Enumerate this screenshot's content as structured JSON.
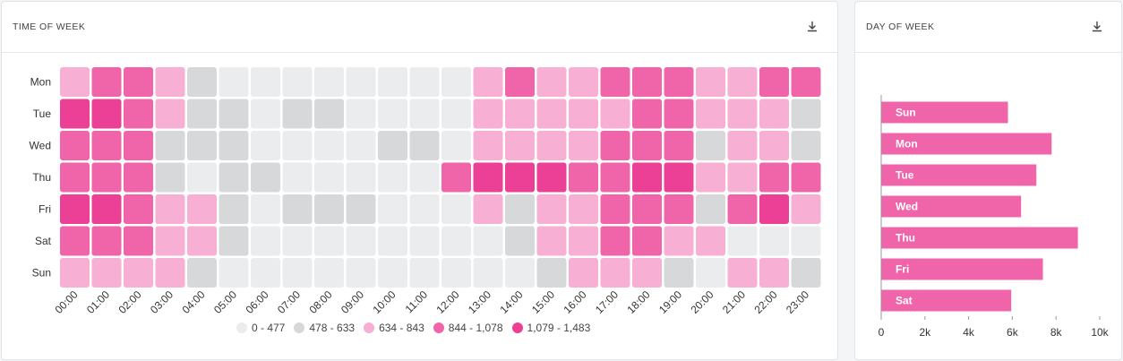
{
  "panels": {
    "time_of_week": {
      "title": "TIME OF WEEK",
      "download_icon": "download-icon"
    },
    "day_of_week": {
      "title": "DAY OF WEEK",
      "download_icon": "download-icon"
    }
  },
  "colors": {
    "bin0": "#ebeced",
    "bin1": "#d7d8d9",
    "bin2": "#f7afd3",
    "bin3": "#f064aa",
    "bin4": "#ec3f96",
    "bar": "#f064aa",
    "axis": "#999999",
    "text": "#333333"
  },
  "legend": [
    {
      "label": "0 - 477",
      "bin": 0
    },
    {
      "label": "478 - 633",
      "bin": 1
    },
    {
      "label": "634 - 843",
      "bin": 2
    },
    {
      "label": "844 - 1,078",
      "bin": 3
    },
    {
      "label": "1,079 - 1,483",
      "bin": 4
    }
  ],
  "chart_data": [
    {
      "type": "heatmap",
      "title": "TIME OF WEEK",
      "rows": [
        "Mon",
        "Tue",
        "Wed",
        "Thu",
        "Fri",
        "Sat",
        "Sun"
      ],
      "columns": [
        "00:00",
        "01:00",
        "02:00",
        "03:00",
        "04:00",
        "05:00",
        "06:00",
        "07:00",
        "08:00",
        "09:00",
        "10:00",
        "11:00",
        "12:00",
        "13:00",
        "14:00",
        "15:00",
        "16:00",
        "17:00",
        "18:00",
        "19:00",
        "20:00",
        "21:00",
        "22:00",
        "23:00"
      ],
      "value_bins": [
        "0 - 477",
        "478 - 633",
        "634 - 843",
        "844 - 1,078",
        "1,079 - 1,483"
      ],
      "bins": [
        [
          2,
          3,
          3,
          2,
          1,
          0,
          0,
          0,
          0,
          0,
          0,
          0,
          0,
          2,
          3,
          2,
          2,
          3,
          3,
          3,
          2,
          2,
          3,
          3
        ],
        [
          4,
          4,
          3,
          2,
          1,
          1,
          0,
          1,
          1,
          0,
          0,
          0,
          0,
          2,
          2,
          2,
          2,
          2,
          3,
          3,
          2,
          2,
          2,
          1
        ],
        [
          3,
          3,
          3,
          1,
          1,
          1,
          0,
          0,
          0,
          0,
          1,
          1,
          0,
          2,
          2,
          2,
          2,
          3,
          3,
          3,
          1,
          2,
          2,
          1
        ],
        [
          3,
          3,
          3,
          1,
          0,
          1,
          1,
          0,
          0,
          0,
          0,
          0,
          3,
          4,
          4,
          4,
          3,
          3,
          4,
          4,
          2,
          2,
          3,
          3
        ],
        [
          4,
          4,
          3,
          2,
          2,
          1,
          0,
          1,
          1,
          1,
          0,
          0,
          0,
          2,
          1,
          2,
          2,
          3,
          3,
          3,
          1,
          3,
          4,
          2
        ],
        [
          3,
          3,
          3,
          2,
          2,
          1,
          0,
          0,
          0,
          0,
          0,
          0,
          0,
          0,
          1,
          2,
          2,
          3,
          3,
          2,
          2,
          0,
          0,
          0
        ],
        [
          2,
          2,
          2,
          2,
          1,
          0,
          0,
          0,
          0,
          0,
          0,
          0,
          0,
          0,
          0,
          1,
          2,
          2,
          2,
          1,
          0,
          2,
          2,
          1
        ]
      ]
    },
    {
      "type": "bar",
      "orientation": "horizontal",
      "title": "DAY OF WEEK",
      "categories": [
        "Sun",
        "Mon",
        "Tue",
        "Wed",
        "Thu",
        "Fri",
        "Sat"
      ],
      "values": [
        5800,
        7800,
        7100,
        6400,
        9000,
        7400,
        5950
      ],
      "xlim": [
        0,
        10000
      ],
      "ticks": [
        0,
        2000,
        4000,
        6000,
        8000,
        10000
      ],
      "tick_labels": [
        "0",
        "2k",
        "4k",
        "6k",
        "8k",
        "10k"
      ]
    }
  ]
}
